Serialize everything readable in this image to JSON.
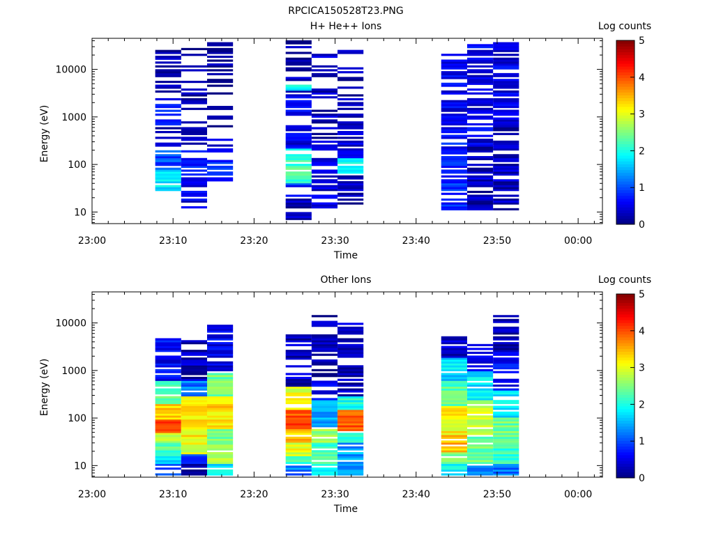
{
  "page": {
    "filename": "RPCICA150528T23.PNG"
  },
  "chart_data": [
    {
      "type": "heatmap",
      "title": "H+ He++ Ions",
      "xlabel": "Time",
      "ylabel": "Energy (eV)",
      "colorbar_label": "Log counts",
      "xticks": [
        "23:00",
        "23:10",
        "23:20",
        "23:30",
        "23:40",
        "23:50",
        "00:00"
      ],
      "xrange_minutes": [
        0,
        63
      ],
      "yscale": "log",
      "yrange": [
        5.7,
        45000
      ],
      "yticks": [
        "10",
        "100",
        "1000",
        "10000"
      ],
      "color_range": [
        0,
        5
      ],
      "color_ticks": [
        "0",
        "1",
        "2",
        "3",
        "4",
        "5"
      ],
      "colormap": "jet",
      "sweeps": [
        {
          "t_start": 7.8,
          "t_end": 11.0,
          "e_min": 28,
          "e_max": 35000,
          "bands": [
            [
              28,
              80,
              1.8
            ],
            [
              80,
              200,
              1.0
            ],
            [
              200,
              700,
              0.3
            ],
            [
              700,
              2200,
              0.9
            ],
            [
              2200,
              35000,
              0.2
            ]
          ],
          "sparse": 0.5
        },
        {
          "t_start": 11.0,
          "t_end": 14.2,
          "e_min": 11,
          "e_max": 30000,
          "bands": [
            [
              11,
              60,
              0.5
            ],
            [
              60,
              200,
              0.8
            ],
            [
              200,
              800,
              0.4
            ],
            [
              800,
              30000,
              0.2
            ]
          ],
          "sparse": 0.5
        },
        {
          "t_start": 14.2,
          "t_end": 17.4,
          "e_min": 40,
          "e_max": 36000,
          "bands": [
            [
              40,
              150,
              0.9
            ],
            [
              150,
              400,
              0.4
            ],
            [
              400,
              36000,
              0.2
            ]
          ],
          "sparse": 0.5
        },
        {
          "t_start": 23.9,
          "t_end": 27.1,
          "e_min": 5.7,
          "e_max": 40000,
          "bands": [
            [
              5.7,
              20,
              0.3
            ],
            [
              20,
              40,
              0.8
            ],
            [
              40,
              220,
              2.2
            ],
            [
              220,
              3500,
              0.5
            ],
            [
              3500,
              5000,
              1.8
            ],
            [
              5000,
              40000,
              0.2
            ]
          ],
          "sparse": 0.35
        },
        {
          "t_start": 27.1,
          "t_end": 30.3,
          "e_min": 11,
          "e_max": 23000,
          "bands": [
            [
              11,
              200,
              0.4
            ],
            [
              200,
              23000,
              0.3
            ]
          ],
          "sparse": 0.5
        },
        {
          "t_start": 30.3,
          "t_end": 33.5,
          "e_min": 11,
          "e_max": 28000,
          "bands": [
            [
              11,
              60,
              0.3
            ],
            [
              60,
              140,
              1.9
            ],
            [
              140,
              1800,
              0.4
            ],
            [
              1800,
              28000,
              0.2
            ]
          ],
          "sparse": 0.45
        },
        {
          "t_start": 43.1,
          "t_end": 46.3,
          "e_min": 11,
          "e_max": 22000,
          "bands": [
            [
              11,
              50,
              0.8
            ],
            [
              50,
              500,
              0.7
            ],
            [
              500,
              22000,
              0.5
            ]
          ],
          "sparse": 0.3
        },
        {
          "t_start": 46.3,
          "t_end": 49.5,
          "e_min": 11,
          "e_max": 35000,
          "bands": [
            [
              11,
              250,
              0.3
            ],
            [
              250,
              35000,
              0.5
            ]
          ],
          "sparse": 0.25
        },
        {
          "t_start": 49.5,
          "t_end": 52.7,
          "e_min": 11,
          "e_max": 38000,
          "bands": [
            [
              11,
              800,
              0.3
            ],
            [
              800,
              38000,
              0.5
            ]
          ],
          "sparse": 0.25
        }
      ]
    },
    {
      "type": "heatmap",
      "title": "Other Ions",
      "xlabel": "Time",
      "ylabel": "Energy (eV)",
      "colorbar_label": "Log counts",
      "xticks": [
        "23:00",
        "23:10",
        "23:20",
        "23:30",
        "23:40",
        "23:50",
        "00:00"
      ],
      "xrange_minutes": [
        0,
        63
      ],
      "yscale": "log",
      "yrange": [
        5.7,
        45000
      ],
      "yticks": [
        "10",
        "100",
        "1000",
        "10000"
      ],
      "color_range": [
        0,
        5
      ],
      "color_ticks": [
        "0",
        "1",
        "2",
        "3",
        "4",
        "5"
      ],
      "colormap": "jet",
      "sweeps": [
        {
          "t_start": 7.8,
          "t_end": 11.0,
          "e_min": 6.5,
          "e_max": 5000,
          "bands": [
            [
              6.5,
              11,
              0.8
            ],
            [
              11,
              16,
              1.7
            ],
            [
              16,
              30,
              2.3
            ],
            [
              30,
              50,
              2.8
            ],
            [
              50,
              90,
              4.0
            ],
            [
              90,
              200,
              3.3
            ],
            [
              200,
              600,
              2.3
            ],
            [
              600,
              5000,
              0.6
            ]
          ],
          "sparse": 0.15
        },
        {
          "t_start": 11.0,
          "t_end": 14.2,
          "e_min": 6.5,
          "e_max": 4200,
          "bands": [
            [
              6.5,
              11,
              0.2
            ],
            [
              11,
              18,
              0.9
            ],
            [
              18,
              40,
              3.0
            ],
            [
              40,
              300,
              3.2
            ],
            [
              300,
              600,
              1.2
            ],
            [
              600,
              4200,
              0.3
            ]
          ],
          "sparse": 0.2
        },
        {
          "t_start": 14.2,
          "t_end": 17.4,
          "e_min": 6.5,
          "e_max": 9000,
          "bands": [
            [
              6.5,
              11,
              1.8
            ],
            [
              11,
              20,
              2.7
            ],
            [
              20,
              60,
              2.5
            ],
            [
              60,
              300,
              3.3
            ],
            [
              300,
              900,
              2.4
            ],
            [
              900,
              9000,
              0.5
            ]
          ],
          "sparse": 0.25
        },
        {
          "t_start": 23.9,
          "t_end": 27.1,
          "e_min": 6.5,
          "e_max": 5500,
          "bands": [
            [
              6.5,
              11,
              1.2
            ],
            [
              11,
              16,
              2.2
            ],
            [
              16,
              30,
              3.0
            ],
            [
              30,
              60,
              3.4
            ],
            [
              60,
              150,
              4.0
            ],
            [
              150,
              450,
              3.0
            ],
            [
              450,
              5500,
              0.3
            ]
          ],
          "sparse": 0.3
        },
        {
          "t_start": 27.1,
          "t_end": 30.3,
          "e_min": 6.5,
          "e_max": 15000,
          "bands": [
            [
              6.5,
              11,
              1.9
            ],
            [
              11,
              30,
              2.2
            ],
            [
              30,
              60,
              2.6
            ],
            [
              60,
              250,
              1.5
            ],
            [
              250,
              600,
              0.6
            ],
            [
              600,
              15000,
              0.2
            ]
          ],
          "sparse": 0.35
        },
        {
          "t_start": 30.3,
          "t_end": 33.5,
          "e_min": 6.5,
          "e_max": 10000,
          "bands": [
            [
              6.5,
              11,
              1.3
            ],
            [
              11,
              30,
              1.4
            ],
            [
              30,
              50,
              2.2
            ],
            [
              50,
              150,
              4.0
            ],
            [
              150,
              300,
              2.0
            ],
            [
              300,
              10000,
              0.3
            ]
          ],
          "sparse": 0.35
        },
        {
          "t_start": 43.1,
          "t_end": 46.3,
          "e_min": 6.5,
          "e_max": 5300,
          "bands": [
            [
              6.5,
              11,
              1.9
            ],
            [
              11,
              20,
              2.6
            ],
            [
              20,
              45,
              3.5
            ],
            [
              45,
              180,
              3.1
            ],
            [
              180,
              600,
              2.3
            ],
            [
              600,
              1800,
              1.7
            ],
            [
              1800,
              5300,
              0.4
            ]
          ],
          "sparse": 0.2
        },
        {
          "t_start": 46.3,
          "t_end": 49.5,
          "e_min": 6.5,
          "e_max": 3500,
          "bands": [
            [
              6.5,
              11,
              1.3
            ],
            [
              11,
              40,
              2.4
            ],
            [
              40,
              250,
              2.9
            ],
            [
              250,
              1000,
              1.8
            ],
            [
              1000,
              3500,
              0.5
            ]
          ],
          "sparse": 0.25
        },
        {
          "t_start": 49.5,
          "t_end": 52.7,
          "e_min": 6.5,
          "e_max": 17000,
          "bands": [
            [
              6.5,
              11,
              1.2
            ],
            [
              11,
              30,
              2.1
            ],
            [
              30,
              100,
              2.4
            ],
            [
              100,
              400,
              1.8
            ],
            [
              400,
              2500,
              0.6
            ],
            [
              2500,
              17000,
              0.2
            ]
          ],
          "sparse": 0.3
        }
      ]
    }
  ]
}
